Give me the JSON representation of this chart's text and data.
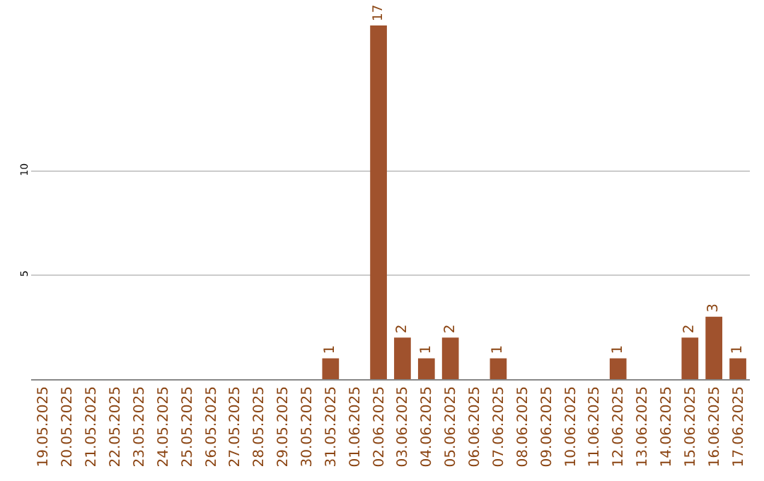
{
  "chart_data": {
    "type": "bar",
    "categories": [
      "19.05.2025",
      "20.05.2025",
      "21.05.2025",
      "22.05.2025",
      "23.05.2025",
      "24.05.2025",
      "25.05.2025",
      "26.05.2025",
      "27.05.2025",
      "28.05.2025",
      "29.05.2025",
      "30.05.2025",
      "31.05.2025",
      "01.06.2025",
      "02.06.2025",
      "03.06.2025",
      "04.06.2025",
      "05.06.2025",
      "06.06.2025",
      "07.06.2025",
      "08.06.2025",
      "09.06.2025",
      "10.06.2025",
      "11.06.2025",
      "12.06.2025",
      "13.06.2025",
      "14.06.2025",
      "15.06.2025",
      "16.06.2025",
      "17.06.2025"
    ],
    "values": [
      0,
      0,
      0,
      0,
      0,
      0,
      0,
      0,
      0,
      0,
      0,
      0,
      1,
      0,
      17,
      2,
      1,
      2,
      0,
      1,
      0,
      0,
      0,
      0,
      1,
      0,
      0,
      2,
      3,
      1
    ],
    "value_labels": [
      null,
      null,
      null,
      null,
      null,
      null,
      null,
      null,
      null,
      null,
      null,
      null,
      "1",
      null,
      "17",
      "2",
      "1",
      "2",
      null,
      "1",
      null,
      null,
      null,
      null,
      "1",
      null,
      null,
      "2",
      "3",
      "1"
    ],
    "color": "#a0522d",
    "ylim": [
      0,
      17
    ],
    "yticks": [
      5,
      10
    ],
    "grid": "y",
    "legend": false
  }
}
